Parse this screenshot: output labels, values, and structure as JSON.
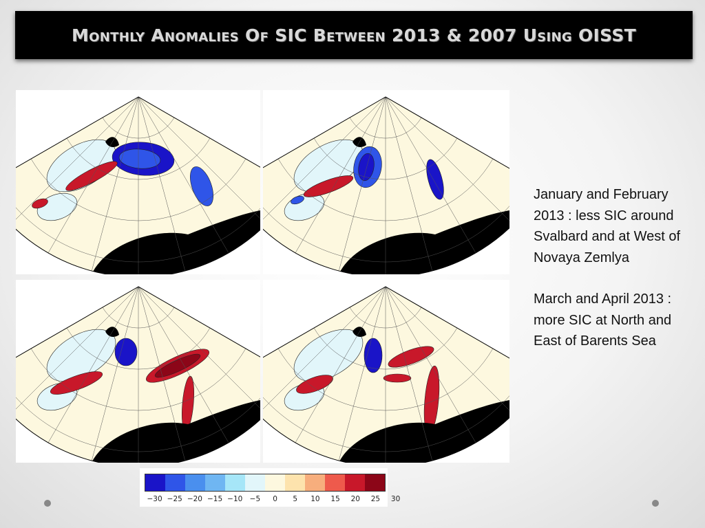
{
  "title": "Monthly Anomalies Of SIC Between 2013 & 2007 Using OISST",
  "caption": {
    "paragraph1": "January and February 2013 : less SIC around Svalbard and at West of Novaya Zemlya",
    "paragraph2": "March and April 2013 : more SIC at North and East of Barents Sea"
  },
  "colorbar": {
    "colors": [
      "#1a14c8",
      "#2f55e8",
      "#4a8fee",
      "#6fb6f2",
      "#a6e6f8",
      "#e2f6fa",
      "#fdf8df",
      "#fde3ad",
      "#f7ae7d",
      "#ee5a4c",
      "#c8182a",
      "#8c0618"
    ],
    "tick_labels": [
      "−30",
      "−25",
      "−20",
      "−15",
      "−10",
      "−5",
      "0",
      "5",
      "10",
      "15",
      "20",
      "25",
      "30"
    ]
  },
  "maps": [
    {
      "name": "map-january"
    },
    {
      "name": "map-february"
    },
    {
      "name": "map-march"
    },
    {
      "name": "map-april"
    }
  ]
}
